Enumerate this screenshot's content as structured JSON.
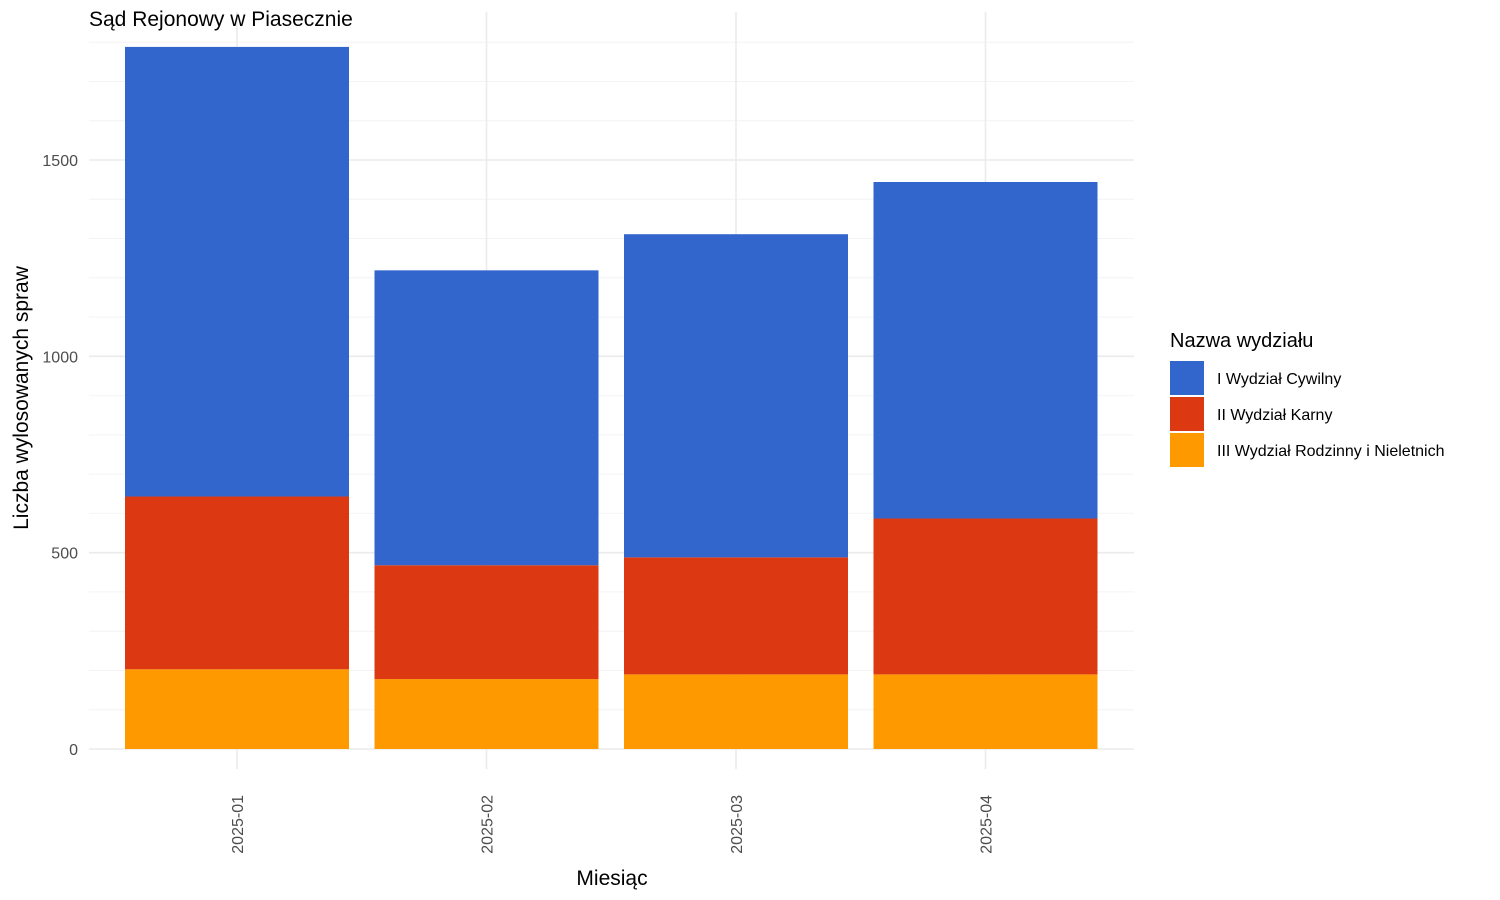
{
  "chart_data": {
    "type": "bar",
    "stacked": true,
    "title": "Sąd Rejonowy w Piasecznie",
    "xlabel": "Miesiąc",
    "ylabel": "Liczba wylosowanych spraw",
    "categories": [
      "2025-01",
      "2025-02",
      "2025-03",
      "2025-04"
    ],
    "ylim": [
      0,
      1880
    ],
    "yticks": [
      0,
      500,
      1000,
      1500
    ],
    "grid": true,
    "legend": {
      "title": "Nazwa wydziału",
      "placement": "right"
    },
    "series": [
      {
        "name": "III Wydział Rodzinny i Nieletnich",
        "color": "#ff9900",
        "values": [
          203,
          178,
          190,
          190
        ]
      },
      {
        "name": "II Wydział Karny",
        "color": "#dc3912",
        "values": [
          440,
          290,
          298,
          397
        ]
      },
      {
        "name": "I Wydział Cywilny",
        "color": "#3366cc",
        "values": [
          1145,
          751,
          823,
          857
        ]
      }
    ]
  }
}
